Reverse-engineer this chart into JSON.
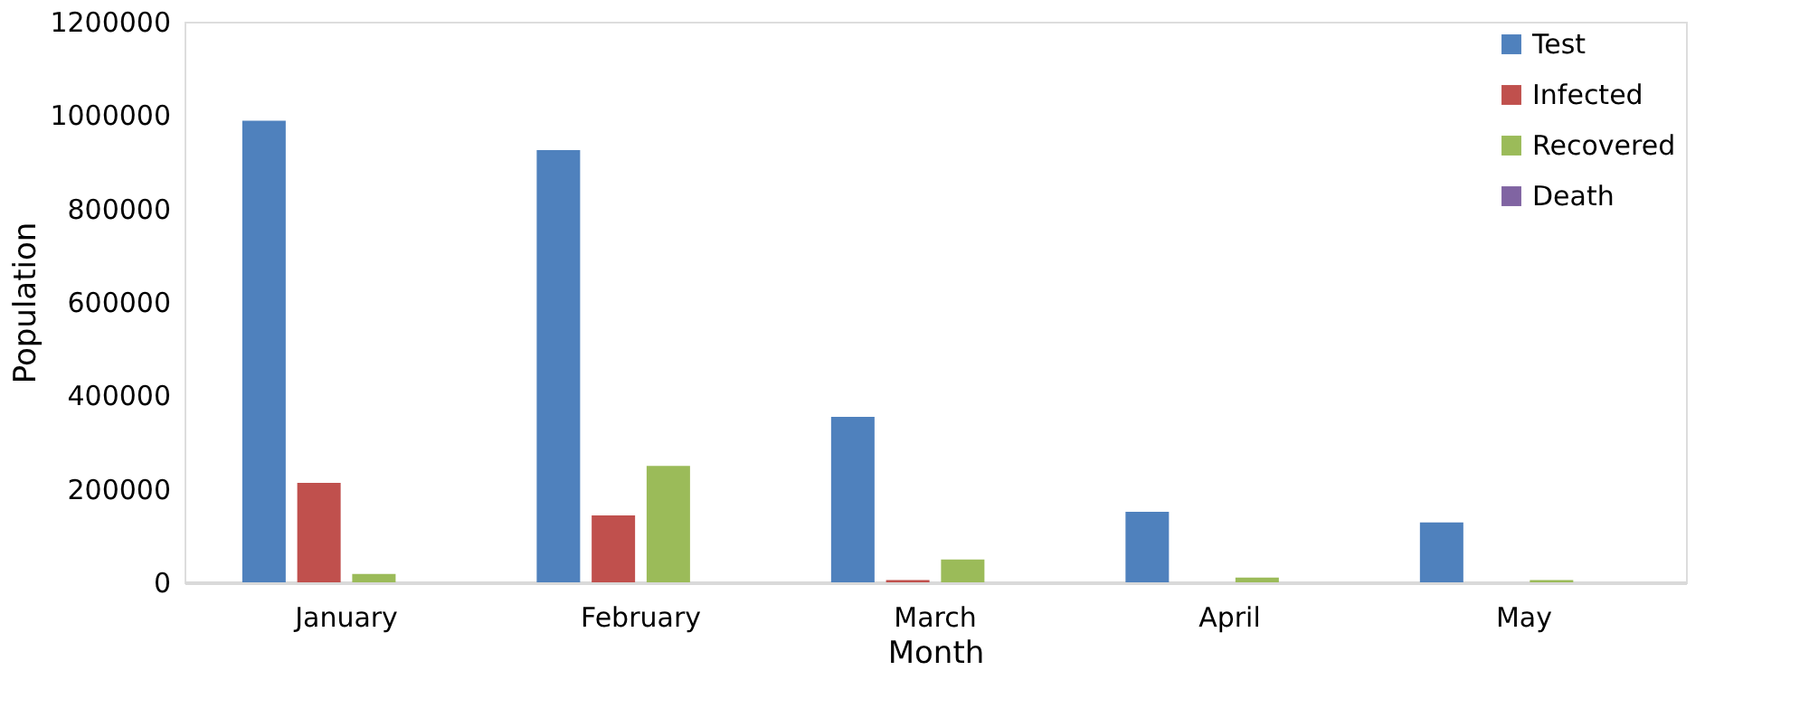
{
  "chart_data": {
    "type": "bar",
    "xlabel": "Month",
    "ylabel": "Population",
    "categories": [
      "January",
      "February",
      "March",
      "April",
      "May"
    ],
    "series": [
      {
        "name": "Test",
        "color": "#4f81bd",
        "values": [
          988000,
          925000,
          354000,
          151000,
          128000
        ]
      },
      {
        "name": "Infected",
        "color": "#c0504d",
        "values": [
          213000,
          143000,
          5000,
          0,
          0
        ]
      },
      {
        "name": "Recovered",
        "color": "#9bbb59",
        "values": [
          18000,
          249000,
          49000,
          10000,
          5000
        ]
      },
      {
        "name": "Death",
        "color": "#8064a2",
        "values": [
          0,
          0,
          0,
          0,
          0
        ]
      }
    ],
    "ylim": [
      0,
      1200000
    ],
    "yticks": [
      0,
      200000,
      400000,
      600000,
      800000,
      1000000,
      1200000
    ],
    "grid": false,
    "legend": "top right"
  }
}
